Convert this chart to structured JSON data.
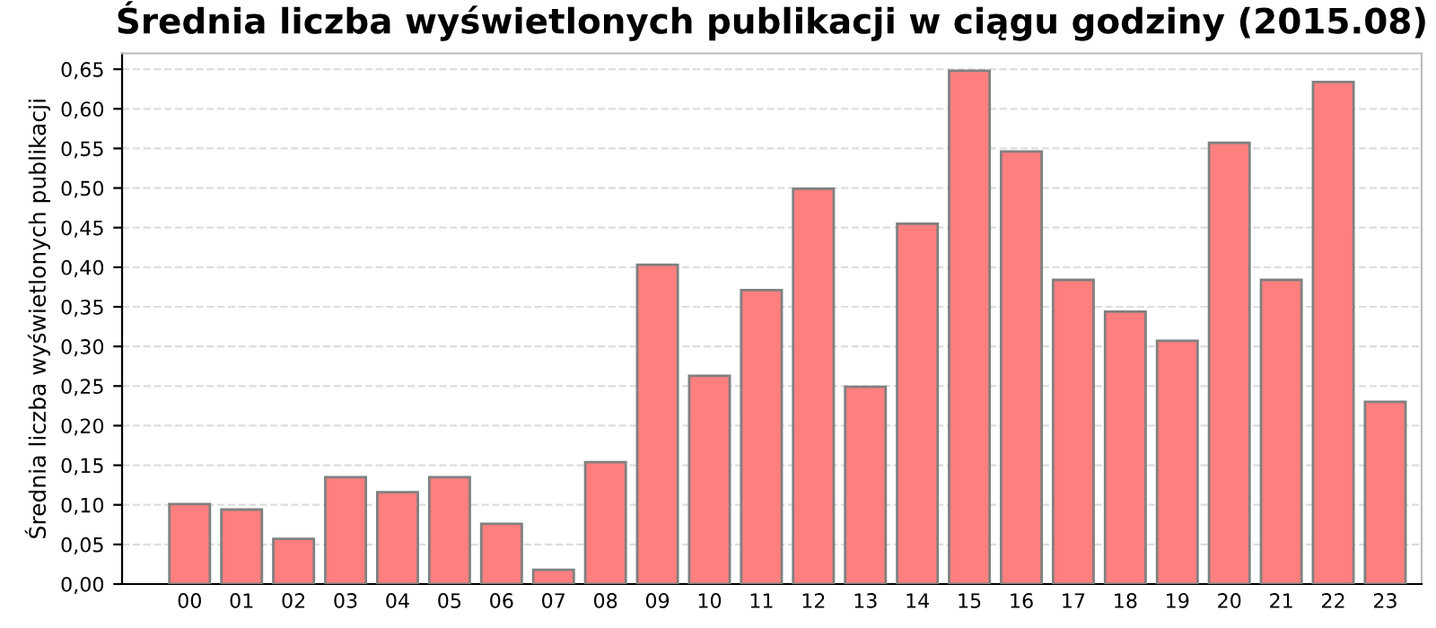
{
  "chart_data": {
    "type": "bar",
    "title": "Średnia liczba wyświetlonych publikacji w ciągu godziny (2015.08)",
    "ylabel": "Średnia liczba wyświetlonych publikacji",
    "categories": [
      "00",
      "01",
      "02",
      "03",
      "04",
      "05",
      "06",
      "07",
      "08",
      "09",
      "10",
      "11",
      "12",
      "13",
      "14",
      "15",
      "16",
      "17",
      "18",
      "19",
      "20",
      "21",
      "22",
      "23"
    ],
    "values": [
      0.101,
      0.094,
      0.057,
      0.135,
      0.116,
      0.135,
      0.076,
      0.018,
      0.154,
      0.403,
      0.263,
      0.371,
      0.499,
      0.249,
      0.455,
      0.648,
      0.546,
      0.384,
      0.344,
      0.307,
      0.557,
      0.384,
      0.634,
      0.23
    ],
    "color": "#ff7f7f",
    "ylim": [
      0,
      0.67
    ],
    "yticks": [
      {
        "value": 0,
        "label": "0,00"
      },
      {
        "value": 0.05,
        "label": "0,05"
      },
      {
        "value": 0.1,
        "label": "0,10"
      },
      {
        "value": 0.15,
        "label": "0,15"
      },
      {
        "value": 0.2,
        "label": "0,20"
      },
      {
        "value": 0.25,
        "label": "0,25"
      },
      {
        "value": 0.3,
        "label": "0,30"
      },
      {
        "value": 0.35,
        "label": "0,35"
      },
      {
        "value": 0.4,
        "label": "0,40"
      },
      {
        "value": 0.45,
        "label": "0,45"
      },
      {
        "value": 0.5,
        "label": "0,50"
      },
      {
        "value": 0.55,
        "label": "0,55"
      },
      {
        "value": 0.6,
        "label": "0,60"
      },
      {
        "value": 0.65,
        "label": "0,65"
      }
    ],
    "grid": "y"
  }
}
